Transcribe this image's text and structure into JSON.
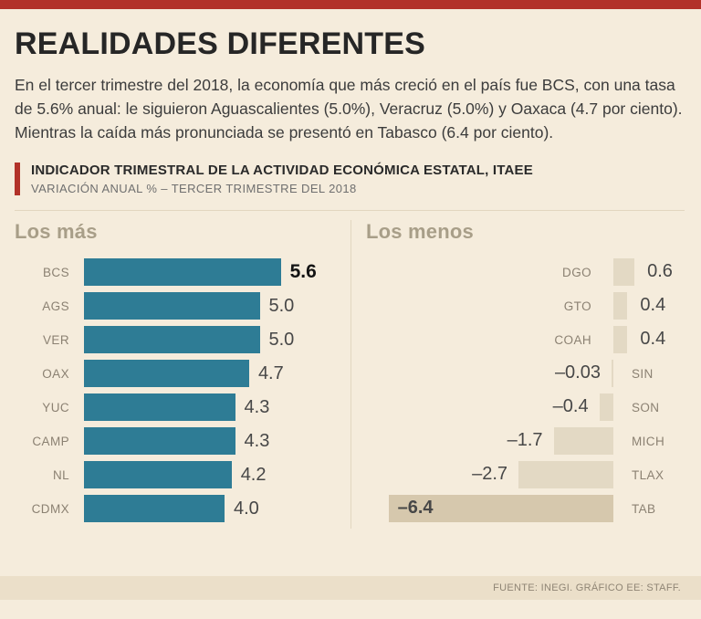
{
  "page": {
    "title": "REALIDADES DIFERENTES",
    "intro": "En el tercer trimestre del 2018, la economía que más creció en el país fue BCS, con una tasa de 5.6% anual: le siguieron Aguascalientes (5.0%), Veracruz (5.0%) y Oaxaca (4.7 por ciento). Mientras la caída más pronunciada se presentó en Tabasco (6.4 por ciento)."
  },
  "indicator_header": {
    "title": "INDICADOR TRIMESTRAL DE LA ACTIVIDAD ECONÓMICA ESTATAL, ITAEE",
    "subtitle": "VARIACIÓN ANUAL % – TERCER TRIMESTRE DEL 2018"
  },
  "footer": {
    "source": "FUENTE: INEGI. GRÁFICO EE: STAFF."
  },
  "colors": {
    "accent_red": "#b23229",
    "background": "#f5ecdc",
    "bar_positive_teal": "#2e7c95",
    "bar_negative_beige": "#e3d9c4",
    "bar_negative_highlight": "#d6c8ad",
    "muted_heading": "#a89e88"
  },
  "chart_data": [
    {
      "type": "bar",
      "orientation": "horizontal",
      "title": "Los más",
      "bar_color": "#2e7c95",
      "categories": [
        "BCS",
        "AGS",
        "VER",
        "OAX",
        "YUC",
        "CAMP",
        "NL",
        "CDMX"
      ],
      "values": [
        5.6,
        5.0,
        5.0,
        4.7,
        4.3,
        4.3,
        4.2,
        4.0
      ],
      "value_labels": [
        "5.6",
        "5.0",
        "5.0",
        "4.7",
        "4.3",
        "4.3",
        "4.2",
        "4.0"
      ],
      "emphasis_index": 0,
      "xlim": [
        0,
        5.6
      ],
      "grid": false,
      "legend": "none"
    },
    {
      "type": "bar",
      "orientation": "horizontal",
      "title": "Los menos",
      "bar_color": "#e3d9c4",
      "categories": [
        "DGO",
        "GTO",
        "COAH",
        "SIN",
        "SON",
        "MICH",
        "TLAX",
        "TAB"
      ],
      "values": [
        0.6,
        0.4,
        0.4,
        -0.03,
        -0.4,
        -1.7,
        -2.7,
        -6.4
      ],
      "value_labels": [
        "0.6",
        "0.4",
        "0.4",
        "–0.03",
        "–0.4",
        "–1.7",
        "–2.7",
        "–6.4"
      ],
      "emphasis_index": 7,
      "xlim": [
        -6.4,
        0.6
      ],
      "grid": false,
      "legend": "none"
    }
  ]
}
